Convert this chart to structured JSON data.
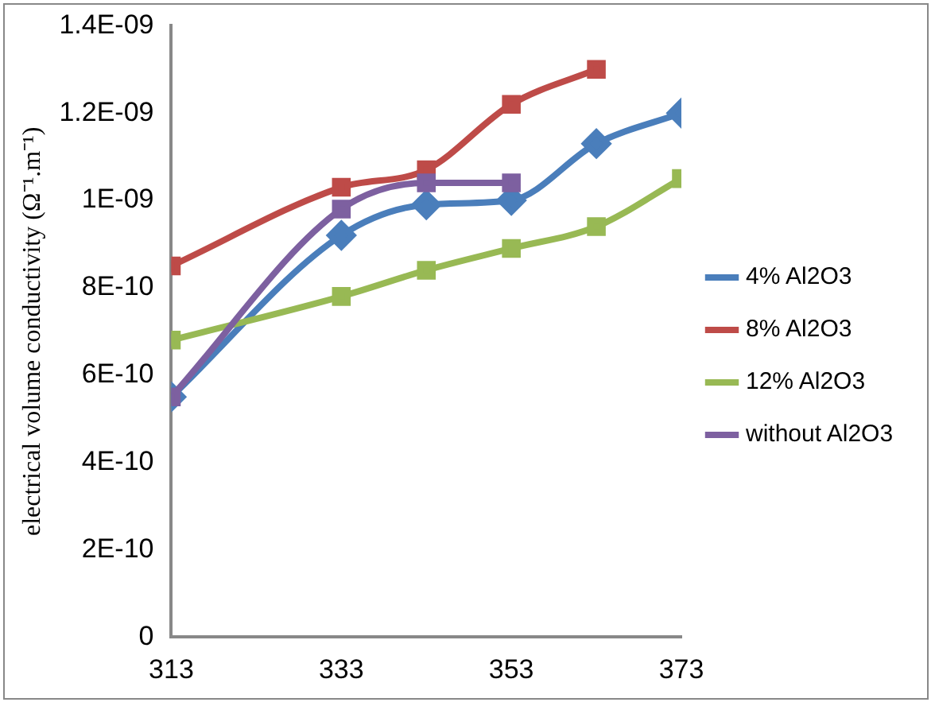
{
  "chart_data": {
    "type": "line",
    "ylabel": "electrical volume conductivity (Ω⁻¹.m⁻¹)",
    "xlim": [
      313,
      373
    ],
    "xticks": [
      313,
      333,
      353,
      373
    ],
    "ylim": [
      0,
      1.4e-09
    ],
    "yticks": [
      0,
      {
        "value": 2e-10,
        "label": "2E-10"
      },
      {
        "value": 4e-10,
        "label": "4E-10"
      },
      {
        "value": 6e-10,
        "label": "6E-10"
      },
      {
        "value": 8e-10,
        "label": "8E-10"
      },
      {
        "value": 1e-09,
        "label": "1E-09"
      },
      {
        "value": 1.2e-09,
        "label": "1.2E-09"
      },
      {
        "value": 1.4e-09,
        "label": "1.4E-09"
      }
    ],
    "grid": false,
    "legend": "right",
    "series": [
      {
        "name": "4% Al2O3",
        "color": "#4a7ebb",
        "marker": "diamond",
        "x": [
          313,
          333,
          343,
          353,
          363,
          373
        ],
        "values": [
          5.5e-10,
          9.2e-10,
          9.9e-10,
          1e-09,
          1.13e-09,
          1.2e-09
        ]
      },
      {
        "name": "8% Al2O3",
        "color": "#be4b48",
        "marker": "square",
        "x": [
          313,
          333,
          343,
          353,
          363
        ],
        "values": [
          8.5e-10,
          1.03e-09,
          1.07e-09,
          1.22e-09,
          1.3e-09
        ]
      },
      {
        "name": "12% Al2O3",
        "color": "#98b954",
        "marker": "square",
        "x": [
          313,
          333,
          343,
          353,
          363,
          373
        ],
        "values": [
          6.8e-10,
          7.8e-10,
          8.4e-10,
          8.9e-10,
          9.4e-10,
          1.05e-09
        ]
      },
      {
        "name": "without Al2O3",
        "color": "#7d60a0",
        "marker": "square",
        "x": [
          313,
          333,
          343,
          353
        ],
        "values": [
          5.5e-10,
          9.8e-10,
          1.04e-09,
          1.04e-09
        ]
      }
    ]
  }
}
